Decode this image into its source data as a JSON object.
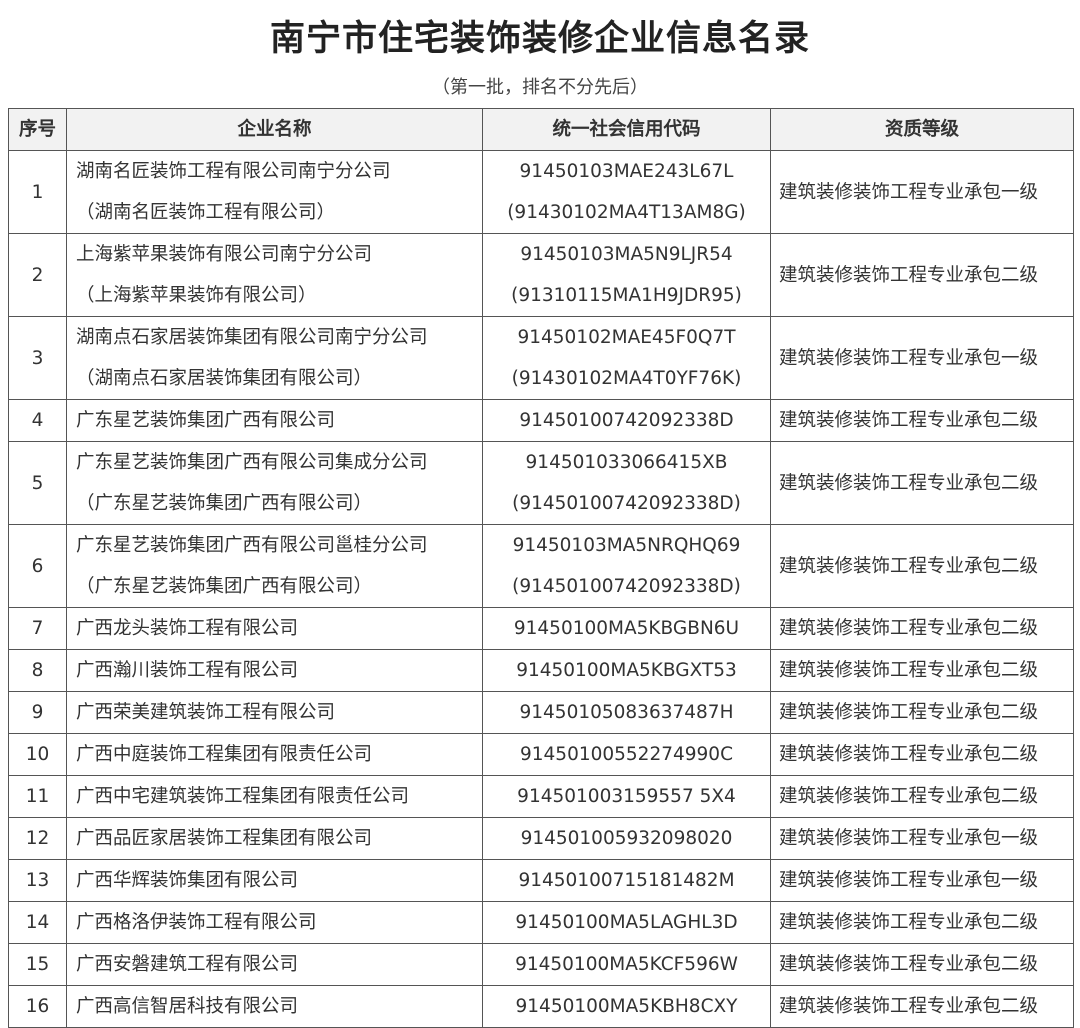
{
  "title": "南宁市住宅装饰装修企业信息名录",
  "subtitle": "（第一批，排名不分先后）",
  "table": {
    "headers": [
      "序号",
      "企业名称",
      "统一社会信用代码",
      "资质等级"
    ],
    "rows": [
      {
        "no": "1",
        "name": [
          "湖南名匠装饰工程有限公司南宁分公司",
          "（湖南名匠装饰工程有限公司）"
        ],
        "code": [
          "91450103MAE243L67L",
          "(91430102MA4T13AM8G)"
        ],
        "level": "建筑装修装饰工程专业承包一级"
      },
      {
        "no": "2",
        "name": [
          "上海紫苹果装饰有限公司南宁分公司",
          "（上海紫苹果装饰有限公司）"
        ],
        "code": [
          "91450103MA5N9LJR54",
          "(91310115MA1H9JDR95)"
        ],
        "level": "建筑装修装饰工程专业承包二级"
      },
      {
        "no": "3",
        "name": [
          "湖南点石家居装饰集团有限公司南宁分公司",
          "（湖南点石家居装饰集团有限公司）"
        ],
        "code": [
          "91450102MAE45F0Q7T",
          "(91430102MA4T0YF76K)"
        ],
        "level": "建筑装修装饰工程专业承包一级"
      },
      {
        "no": "4",
        "name": [
          "广东星艺装饰集团广西有限公司"
        ],
        "code": [
          "91450100742092338D"
        ],
        "level": "建筑装修装饰工程专业承包二级"
      },
      {
        "no": "5",
        "name": [
          "广东星艺装饰集团广西有限公司集成分公司",
          "（广东星艺装饰集团广西有限公司）"
        ],
        "code": [
          "914501033066415XB",
          "(91450100742092338D)"
        ],
        "level": "建筑装修装饰工程专业承包二级"
      },
      {
        "no": "6",
        "name": [
          "广东星艺装饰集团广西有限公司邕桂分公司",
          "（广东星艺装饰集团广西有限公司）"
        ],
        "code": [
          "91450103MA5NRQHQ69",
          "(91450100742092338D)"
        ],
        "level": "建筑装修装饰工程专业承包二级"
      },
      {
        "no": "7",
        "name": [
          "广西龙头装饰工程有限公司"
        ],
        "code": [
          "91450100MA5KBGBN6U"
        ],
        "level": "建筑装修装饰工程专业承包二级"
      },
      {
        "no": "8",
        "name": [
          "广西瀚川装饰工程有限公司"
        ],
        "code": [
          "91450100MA5KBGXT53"
        ],
        "level": "建筑装修装饰工程专业承包二级"
      },
      {
        "no": "9",
        "name": [
          "广西荣美建筑装饰工程有限公司"
        ],
        "code": [
          "91450105083637487H"
        ],
        "level": "建筑装修装饰工程专业承包二级"
      },
      {
        "no": "10",
        "name": [
          "广西中庭装饰工程集团有限责任公司"
        ],
        "code": [
          "91450100552274990C"
        ],
        "level": "建筑装修装饰工程专业承包二级"
      },
      {
        "no": "11",
        "name": [
          "广西中宅建筑装饰工程集团有限责任公司"
        ],
        "code": [
          "914501003159557 5X4"
        ],
        "level": "建筑装修装饰工程专业承包二级"
      },
      {
        "no": "12",
        "name": [
          "广西品匠家居装饰工程集团有限公司"
        ],
        "code": [
          "914501005932098020"
        ],
        "level": "建筑装修装饰工程专业承包一级"
      },
      {
        "no": "13",
        "name": [
          "广西华辉装饰集团有限公司"
        ],
        "code": [
          "91450100715181482M"
        ],
        "level": "建筑装修装饰工程专业承包一级"
      },
      {
        "no": "14",
        "name": [
          "广西格洛伊装饰工程有限公司"
        ],
        "code": [
          "91450100MA5LAGHL3D"
        ],
        "level": "建筑装修装饰工程专业承包二级"
      },
      {
        "no": "15",
        "name": [
          "广西安磐建筑工程有限公司"
        ],
        "code": [
          "91450100MA5KCF596W"
        ],
        "level": "建筑装修装饰工程专业承包二级"
      },
      {
        "no": "16",
        "name": [
          "广西高信智居科技有限公司"
        ],
        "code": [
          "91450100MA5KBH8CXY"
        ],
        "level": "建筑装修装饰工程专业承包二级"
      }
    ]
  }
}
